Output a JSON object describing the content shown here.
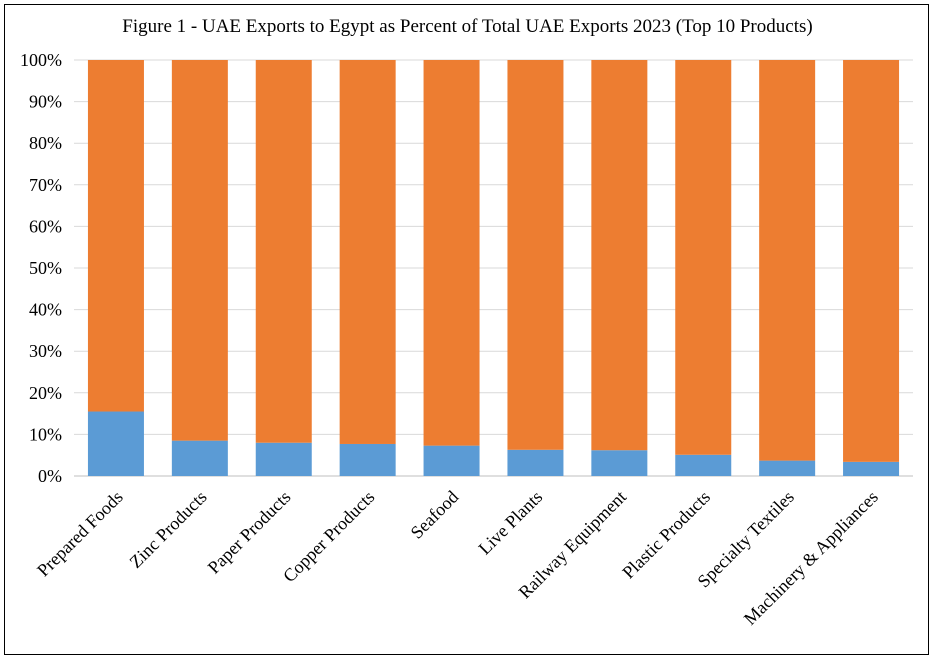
{
  "chart_data": {
    "type": "bar",
    "stacked": true,
    "percent_stacked": true,
    "title": "Figure 1 - UAE Exports to Egypt as Percent of Total UAE Exports 2023 (Top 10 Products)",
    "xlabel": "",
    "ylabel": "",
    "categories": [
      "Prepared Foods",
      "Zinc Products",
      "Paper Products",
      "Copper Products",
      "Seafood",
      "Live Plants",
      "Railway Equipment",
      "Plastic Products",
      "Specialty Textiles",
      "Machinery & Appliances"
    ],
    "series": [
      {
        "color": "#5b9bd5",
        "values": [
          15.5,
          8.5,
          8.0,
          7.7,
          7.3,
          6.3,
          6.2,
          5.1,
          3.7,
          3.4
        ]
      },
      {
        "color": "#ed7d31",
        "values": [
          84.5,
          91.5,
          92.0,
          92.3,
          92.7,
          93.7,
          93.8,
          94.9,
          96.3,
          96.6
        ]
      }
    ],
    "ylim": [
      0,
      100
    ],
    "y_ticks": [
      "0%",
      "10%",
      "20%",
      "30%",
      "40%",
      "50%",
      "60%",
      "70%",
      "80%",
      "90%",
      "100%"
    ],
    "grid": true,
    "legend": "none"
  }
}
